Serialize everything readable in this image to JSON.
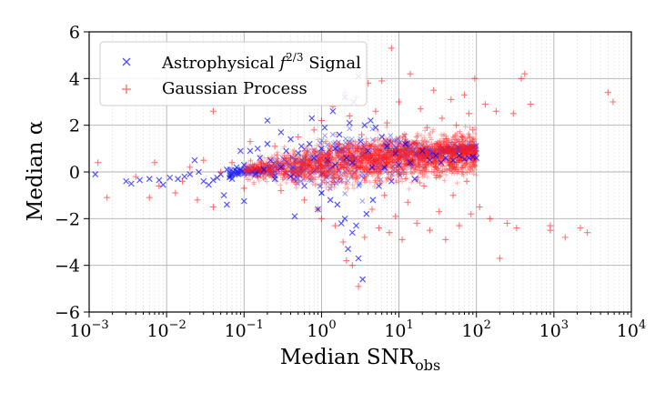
{
  "chart_data": {
    "type": "scatter",
    "xlabel": "Median SNR",
    "xlabel_sub": "obs",
    "ylabel": "Median α",
    "xscale": "log",
    "xlim": [
      0.001,
      10000
    ],
    "ylim": [
      -6,
      6
    ],
    "grid": true,
    "legend_position": "top-left",
    "x_tick_labels": [
      {
        "base": "10",
        "exp": "−3",
        "value": 0.001
      },
      {
        "base": "10",
        "exp": "−2",
        "value": 0.01
      },
      {
        "base": "10",
        "exp": "−1",
        "value": 0.1
      },
      {
        "base": "10",
        "exp": "0",
        "value": 1
      },
      {
        "base": "10",
        "exp": "1",
        "value": 10
      },
      {
        "base": "10",
        "exp": "2",
        "value": 100
      },
      {
        "base": "10",
        "exp": "3",
        "value": 1000
      },
      {
        "base": "10",
        "exp": "4",
        "value": 10000
      }
    ],
    "y_ticks": [
      -6,
      -4,
      -2,
      0,
      2,
      4,
      6
    ],
    "y_tick_labels": [
      "−6",
      "−4",
      "−2",
      "0",
      "2",
      "4",
      "6"
    ],
    "series": [
      {
        "name": "Astrophysical f2/3 Signal",
        "legend_label": {
          "prefix": "Astrophysical ",
          "var": "f",
          "sup": "2/3",
          "suffix": " Signal"
        },
        "marker": "x",
        "color": "#0000ff",
        "points": [
          [
            0.0012,
            -0.1
          ],
          [
            0.003,
            -0.4
          ],
          [
            0.0035,
            -0.5
          ],
          [
            0.0045,
            -0.35
          ],
          [
            0.006,
            -0.3
          ],
          [
            0.008,
            -0.35
          ],
          [
            0.009,
            -0.55
          ],
          [
            0.011,
            -0.25
          ],
          [
            0.014,
            -0.3
          ],
          [
            0.017,
            -0.2
          ],
          [
            0.02,
            -0.1
          ],
          [
            0.023,
            0.5
          ],
          [
            0.026,
            0.0
          ],
          [
            0.03,
            -0.4
          ],
          [
            0.035,
            -0.55
          ],
          [
            0.04,
            -0.35
          ],
          [
            0.045,
            -0.25
          ],
          [
            0.05,
            -0.1
          ],
          [
            0.055,
            -1.0
          ],
          [
            0.06,
            -1.4
          ],
          [
            0.06,
            0.1
          ],
          [
            0.07,
            -0.3
          ],
          [
            0.08,
            0.2
          ],
          [
            0.09,
            0.9
          ],
          [
            0.1,
            -1.25
          ],
          [
            0.1,
            0.3
          ],
          [
            0.12,
            0.9
          ],
          [
            0.14,
            -0.1
          ],
          [
            0.15,
            1.0
          ],
          [
            0.16,
            0.6
          ],
          [
            0.18,
            0.1
          ],
          [
            0.2,
            1.2
          ],
          [
            0.2,
            2.2
          ],
          [
            0.22,
            0.5
          ],
          [
            0.25,
            -0.3
          ],
          [
            0.3,
            0.2
          ],
          [
            0.3,
            1.7
          ],
          [
            0.35,
            0.9
          ],
          [
            0.4,
            -0.2
          ],
          [
            0.4,
            1.4
          ],
          [
            0.45,
            -1.9
          ],
          [
            0.5,
            0.8
          ],
          [
            0.55,
            1.1
          ],
          [
            0.6,
            -0.6
          ],
          [
            0.7,
            1.2
          ],
          [
            0.75,
            2.3
          ],
          [
            0.8,
            0.6
          ],
          [
            0.9,
            -1.6
          ],
          [
            1.0,
            1.0
          ],
          [
            1.0,
            -0.9
          ],
          [
            1.1,
            1.9
          ],
          [
            1.2,
            0.5
          ],
          [
            1.3,
            -1.2
          ],
          [
            1.4,
            2.6
          ],
          [
            1.5,
            0.3
          ],
          [
            1.6,
            -1.4
          ],
          [
            1.7,
            1.6
          ],
          [
            1.8,
            -2.2
          ],
          [
            2.0,
            3.2
          ],
          [
            2.0,
            -2.0
          ],
          [
            2.1,
            0.6
          ],
          [
            2.2,
            -3.3
          ],
          [
            2.3,
            2.1
          ],
          [
            2.5,
            -2.6
          ],
          [
            2.6,
            3.0
          ],
          [
            2.8,
            -2.3
          ],
          [
            3.0,
            4.1
          ],
          [
            3.0,
            -3.7
          ],
          [
            3.2,
            1.3
          ],
          [
            3.4,
            -4.6
          ],
          [
            3.6,
            2.0
          ],
          [
            3.8,
            -1.8
          ],
          [
            4.0,
            0.9
          ],
          [
            4.3,
            2.2
          ],
          [
            4.6,
            -1.2
          ],
          [
            5.0,
            1.9
          ],
          [
            5.5,
            -0.6
          ],
          [
            6.0,
            1.5
          ],
          [
            6.5,
            0.2
          ],
          [
            7.0,
            1.1
          ],
          [
            8.0,
            -0.4
          ],
          [
            9.0,
            0.8
          ],
          [
            10.0,
            0.3
          ],
          [
            12.0,
            1.2
          ],
          [
            14.0,
            0.4
          ],
          [
            16.0,
            -0.3
          ],
          [
            20.0,
            0.9
          ],
          [
            25.0,
            0.5
          ],
          [
            30.0,
            0.7
          ],
          [
            35.0,
            0.4
          ],
          [
            40.0,
            0.6
          ],
          [
            50.0,
            0.5
          ],
          [
            60.0,
            0.7
          ],
          [
            70.0,
            0.55
          ],
          [
            80.0,
            0.6
          ],
          [
            90.0,
            0.65
          ],
          [
            100.0,
            0.6
          ],
          [
            1.5,
            1.0
          ],
          [
            2.5,
            0.4
          ],
          [
            4.5,
            0.2
          ]
        ]
      },
      {
        "name": "Gaussian Process",
        "legend_label": {
          "prefix": "Gaussian Process",
          "var": "",
          "sup": "",
          "suffix": ""
        },
        "marker": "+",
        "color": "#ff0000",
        "points": [
          [
            0.0013,
            0.4
          ],
          [
            0.0017,
            -1.1
          ],
          [
            0.004,
            -0.2
          ],
          [
            0.006,
            -1.1
          ],
          [
            0.007,
            0.4
          ],
          [
            0.008,
            -0.6
          ],
          [
            0.013,
            -0.9
          ],
          [
            0.016,
            -0.4
          ],
          [
            0.02,
            0.2
          ],
          [
            0.025,
            -1.2
          ],
          [
            0.03,
            0.5
          ],
          [
            0.04,
            2.6
          ],
          [
            0.04,
            -1.5
          ],
          [
            0.05,
            0.0
          ],
          [
            0.07,
            0.4
          ],
          [
            0.1,
            -0.7
          ],
          [
            0.12,
            1.3
          ],
          [
            0.15,
            -0.2
          ],
          [
            0.2,
            0.3
          ],
          [
            0.25,
            1.1
          ],
          [
            0.3,
            -0.8
          ],
          [
            0.4,
            0.6
          ],
          [
            0.5,
            1.5
          ],
          [
            0.6,
            -1.2
          ],
          [
            0.7,
            0.3
          ],
          [
            0.8,
            1.8
          ],
          [
            0.9,
            -1.6
          ],
          [
            1.0,
            2.2
          ],
          [
            1.0,
            -2.0
          ],
          [
            1.2,
            0.5
          ],
          [
            1.4,
            2.8
          ],
          [
            1.5,
            -2.3
          ],
          [
            1.7,
            1.2
          ],
          [
            1.9,
            -3.0
          ],
          [
            2.0,
            3.4
          ],
          [
            2.1,
            -3.8
          ],
          [
            2.3,
            2.4
          ],
          [
            2.5,
            -4.0
          ],
          [
            2.8,
            3.2
          ],
          [
            3.0,
            -4.9
          ],
          [
            3.3,
            1.6
          ],
          [
            3.6,
            -2.8
          ],
          [
            4.0,
            3.8
          ],
          [
            4.5,
            -1.6
          ],
          [
            5.0,
            2.6
          ],
          [
            5.5,
            -2.4
          ],
          [
            6.0,
            3.9
          ],
          [
            6.5,
            -1.0
          ],
          [
            7.0,
            2.1
          ],
          [
            7.5,
            -2.6
          ],
          [
            8.0,
            5.3
          ],
          [
            8.5,
            0.9
          ],
          [
            9.0,
            -1.9
          ],
          [
            10.0,
            3.0
          ],
          [
            11.0,
            -2.9
          ],
          [
            12.0,
            1.4
          ],
          [
            13.0,
            -1.3
          ],
          [
            14.0,
            4.2
          ],
          [
            15.0,
            0.5
          ],
          [
            17.0,
            -2.2
          ],
          [
            19.0,
            2.7
          ],
          [
            21.0,
            -0.6
          ],
          [
            23.0,
            1.9
          ],
          [
            25.0,
            -2.5
          ],
          [
            28.0,
            3.5
          ],
          [
            30.0,
            0.2
          ],
          [
            33.0,
            -1.7
          ],
          [
            36.0,
            2.3
          ],
          [
            40.0,
            -2.9
          ],
          [
            43.0,
            1.1
          ],
          [
            47.0,
            3.1
          ],
          [
            50.0,
            -1.0
          ],
          [
            55.0,
            2.0
          ],
          [
            60.0,
            -2.3
          ],
          [
            65.0,
            1.5
          ],
          [
            70.0,
            3.3
          ],
          [
            75.0,
            -0.4
          ],
          [
            80.0,
            2.5
          ],
          [
            85.0,
            -1.8
          ],
          [
            90.0,
            1.8
          ],
          [
            95.0,
            4.0
          ],
          [
            100.0,
            0.9
          ],
          [
            110.0,
            -1.5
          ],
          [
            130.0,
            2.9
          ],
          [
            150.0,
            -2.0
          ],
          [
            180.0,
            2.6
          ],
          [
            200.0,
            -3.7
          ],
          [
            250.0,
            -2.2
          ],
          [
            300.0,
            2.5
          ],
          [
            330.0,
            -2.4
          ],
          [
            380.0,
            4.0
          ],
          [
            420.0,
            4.2
          ],
          [
            500.0,
            2.9
          ],
          [
            900.0,
            -2.3
          ],
          [
            900.0,
            -2.5
          ],
          [
            1400.0,
            -2.8
          ],
          [
            2200.0,
            -2.4
          ],
          [
            2700.0,
            -2.6
          ],
          [
            5000.0,
            3.4
          ],
          [
            5800.0,
            3.0
          ]
        ]
      }
    ]
  }
}
